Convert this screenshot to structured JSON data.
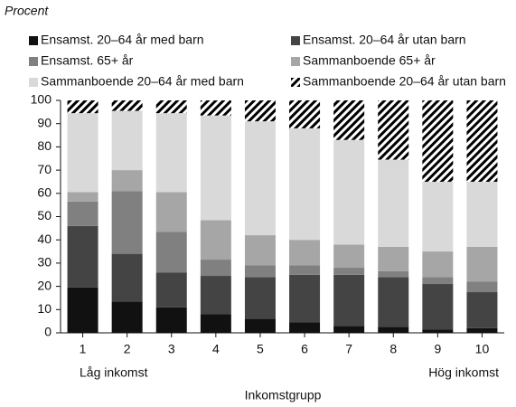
{
  "chart_data": {
    "type": "stacked_bar",
    "ylabel": "Procent",
    "xlabel": "Inkomstgrupp",
    "annotations": [
      "Låg inkomst",
      "Hög inkomst"
    ],
    "categories": [
      "1",
      "2",
      "3",
      "4",
      "5",
      "6",
      "7",
      "8",
      "9",
      "10"
    ],
    "ylim": [
      0,
      100
    ],
    "yticks": [
      0,
      10,
      20,
      30,
      40,
      50,
      60,
      70,
      80,
      90,
      100
    ],
    "series": [
      {
        "name": "Ensamst. 20–64 år med barn",
        "color": "#111111",
        "values": [
          19.5,
          13.5,
          11,
          8,
          6,
          4.5,
          3,
          2.5,
          1.5,
          2
        ]
      },
      {
        "name": "Ensamst. 20–64 år utan barn",
        "color": "#444444",
        "values": [
          26.5,
          20.5,
          15,
          16.5,
          18,
          20.5,
          22,
          21.5,
          19.5,
          15.5
        ]
      },
      {
        "name": "Ensamst. 65+ år",
        "color": "#808080",
        "values": [
          10.5,
          27,
          17.5,
          7,
          5,
          4,
          3,
          2.5,
          3,
          4.5
        ]
      },
      {
        "name": "Sammanboende 65+ år",
        "color": "#a6a6a6",
        "values": [
          4,
          9,
          17,
          17,
          13,
          11,
          10,
          10.5,
          11,
          15
        ]
      },
      {
        "name": "Sammanboende 20–64 år med barn",
        "color": "#d9d9d9",
        "values": [
          34,
          25.5,
          34,
          45,
          49,
          48,
          45,
          37.5,
          30,
          28
        ]
      },
      {
        "name": "Sammanboende 20–64 år utan barn",
        "color": "#000000",
        "hatch": true,
        "values": [
          5.5,
          4.5,
          5.5,
          6.5,
          9,
          12,
          17,
          25.5,
          35,
          35
        ]
      }
    ]
  }
}
